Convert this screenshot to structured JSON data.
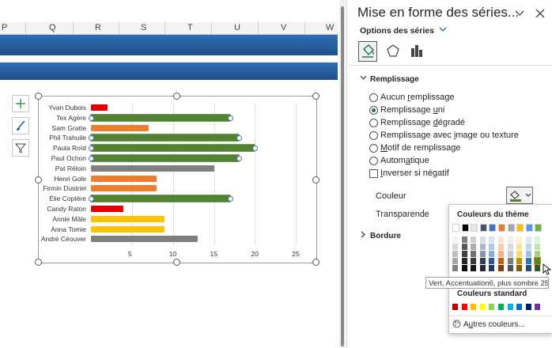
{
  "spreadsheet": {
    "columns": [
      "P",
      "Q",
      "R",
      "S",
      "T",
      "U",
      "V",
      "W"
    ]
  },
  "chart_data": {
    "type": "bar",
    "categories": [
      "Yvan Dubois",
      "Tex Agère",
      "Sam Gratte",
      "Phil Trahuile",
      "Paula Roïd",
      "Paul Ochon",
      "Pat Réloin",
      "Henri Gole",
      "Firmin Dustriel",
      "Élie Coptère",
      "Candy Raton",
      "Annie Mâle",
      "Anna Tomie",
      "André Céouver"
    ],
    "values": [
      2,
      17,
      7,
      18,
      20,
      18,
      15,
      8,
      8,
      17,
      4,
      9,
      9,
      13
    ],
    "colors": [
      "#e00000",
      "#548235",
      "#ed7d31",
      "#548235",
      "#548235",
      "#548235",
      "#7f7f7f",
      "#ed7d31",
      "#ed7d31",
      "#548235",
      "#e00000",
      "#ffc000",
      "#ffc000",
      "#7f7f7f"
    ],
    "selected_series_color": "#548235",
    "xlim": [
      0,
      27
    ],
    "xticks": [
      "5",
      "10",
      "15",
      "20",
      "25"
    ],
    "xtick_values": [
      5,
      10,
      15,
      20,
      25
    ],
    "grid": true
  },
  "pane": {
    "title": "Mise en forme des séries...",
    "options_label": "Options des séries",
    "section_fill": "Remplissage",
    "fill_options": [
      {
        "pre": "Aucun ",
        "u": "r",
        "post": "emplissage"
      },
      {
        "pre": "Remplissage ",
        "u": "u",
        "post": "ni"
      },
      {
        "pre": "Remplissage ",
        "u": "d",
        "post": "égradé"
      },
      {
        "pre": "Remplissage avec ",
        "u": "i",
        "post": "mage ou texture"
      },
      {
        "pre": "",
        "u": "M",
        "post": "otif de remplissage"
      },
      {
        "pre": "Autom",
        "u": "a",
        "post": "tique"
      }
    ],
    "invert_label": {
      "pre": "",
      "u": "I",
      "post": "nverser si négatif"
    },
    "color_label": "Couleur",
    "transparency_label": "Transparence",
    "section_border": "Bordure"
  },
  "color_popup": {
    "theme_header": "Couleurs du thème",
    "standard_header": "Couleurs standard",
    "more_colors": {
      "pre": "A",
      "u": "u",
      "post": "tres couleurs..."
    },
    "tooltip": "Vert, Accentuation6, plus sombre 25 %",
    "theme_top": [
      "#ffffff",
      "#000000",
      "#e7e6e6",
      "#44546a",
      "#4472c4",
      "#ed7d31",
      "#a5a5a5",
      "#ffc000",
      "#5b9bd5",
      "#70ad47"
    ],
    "theme_shades": [
      [
        "#f2f2f2",
        "#7f7f7f",
        "#d0cece",
        "#d6dce4",
        "#d9e2f3",
        "#fbe5d5",
        "#ededed",
        "#fff2cc",
        "#deebf6",
        "#e2efd9"
      ],
      [
        "#d9d9d9",
        "#595959",
        "#aeabab",
        "#adb9ca",
        "#b4c6e7",
        "#f7cbac",
        "#dbdbdb",
        "#fee599",
        "#bdd7ee",
        "#c5e0b3"
      ],
      [
        "#bfbfbf",
        "#404040",
        "#757070",
        "#8496b0",
        "#8eaadb",
        "#f4b183",
        "#c9c9c9",
        "#ffd965",
        "#9cc3e5",
        "#a8d08d"
      ],
      [
        "#a6a6a6",
        "#262626",
        "#3a3838",
        "#323f4f",
        "#2f5496",
        "#c55a11",
        "#7b7b7b",
        "#bf9000",
        "#2e75b5",
        "#538135"
      ],
      [
        "#7f7f7f",
        "#0d0d0d",
        "#171616",
        "#222a35",
        "#1f3864",
        "#833c0b",
        "#525252",
        "#7f6000",
        "#1e4e79",
        "#375623"
      ]
    ],
    "standard": [
      "#c00000",
      "#ff0000",
      "#ffc000",
      "#ffff00",
      "#92d050",
      "#00b050",
      "#00b0f0",
      "#0070c0",
      "#002060",
      "#7030a0"
    ]
  }
}
